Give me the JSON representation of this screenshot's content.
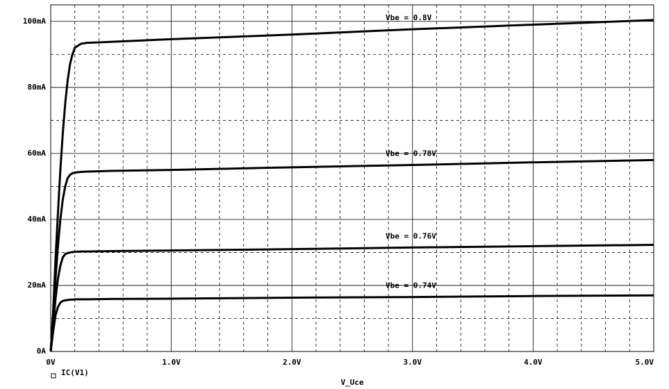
{
  "chart_data": {
    "type": "line",
    "x": [
      0,
      0.02,
      0.04,
      0.06,
      0.08,
      0.1,
      0.12,
      0.14,
      0.16,
      0.18,
      0.2,
      0.25,
      0.3,
      0.5,
      1,
      2,
      3,
      4,
      5
    ],
    "series": [
      {
        "name": "IC(V1)",
        "color": "#000000",
        "values": [
          0,
          12,
          28,
          42,
          55,
          66,
          75,
          82,
          87,
          90,
          92,
          93.2,
          93.5,
          93.8,
          94.6,
          96,
          97.6,
          99,
          100.4
        ]
      },
      {
        "name": "IC(V1)",
        "color": "#000000",
        "values": [
          0,
          10,
          22,
          32,
          40,
          46,
          50,
          52.5,
          53.5,
          54,
          54.2,
          54.4,
          54.5,
          54.7,
          55,
          55.8,
          56.5,
          57.3,
          58
        ]
      },
      {
        "name": "IC(V1)",
        "color": "#000000",
        "values": [
          0,
          8,
          16,
          22,
          26,
          28.5,
          29.5,
          29.8,
          30,
          30.1,
          30.2,
          30.3,
          30.3,
          30.4,
          30.6,
          31,
          31.5,
          31.9,
          32.3
        ]
      },
      {
        "name": "IC(V1)",
        "color": "#000000",
        "values": [
          0,
          6,
          11,
          13.5,
          14.8,
          15.3,
          15.5,
          15.6,
          15.7,
          15.7,
          15.8,
          15.8,
          15.8,
          15.9,
          16,
          16.3,
          16.5,
          16.8,
          17
        ]
      }
    ],
    "annotations": [
      "Vbe = 0.8V",
      "Vbe = 0.78V",
      "Vbe = 0.76V",
      "Vbe = 0.74V"
    ],
    "legend": "IC(V1)",
    "x_label": "V_Uce",
    "xlim": [
      0,
      5
    ],
    "ylim": [
      0,
      105
    ],
    "xticks": [
      {
        "value": 0,
        "label": "0V"
      },
      {
        "value": 1,
        "label": "1.0V"
      },
      {
        "value": 2,
        "label": "2.0V"
      },
      {
        "value": 3,
        "label": "3.0V"
      },
      {
        "value": 4,
        "label": "4.0V"
      },
      {
        "value": 5,
        "label": "5.0V"
      }
    ],
    "yticks": [
      {
        "value": 0,
        "label": "0A"
      },
      {
        "value": 20,
        "label": "20mA"
      },
      {
        "value": 40,
        "label": "40mA"
      },
      {
        "value": 60,
        "label": "60mA"
      },
      {
        "value": 80,
        "label": "80mA"
      },
      {
        "value": 100,
        "label": "100mA"
      }
    ],
    "xminor": [
      0.2,
      0.4,
      0.6,
      0.8,
      1.2,
      1.4,
      1.6,
      1.8,
      2.2,
      2.4,
      2.6,
      2.8,
      3.2,
      3.4,
      3.6,
      3.8,
      4.2,
      4.4,
      4.6,
      4.8
    ],
    "yminor": [
      10,
      30,
      50,
      70,
      90
    ],
    "grid": true
  }
}
